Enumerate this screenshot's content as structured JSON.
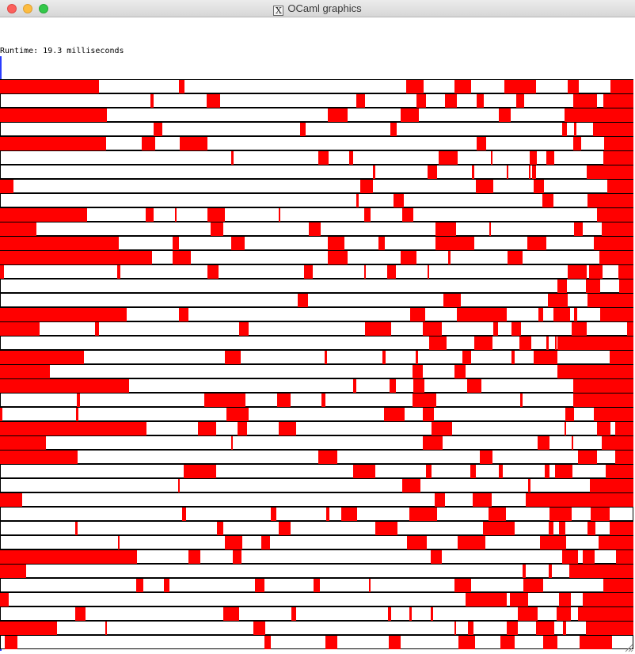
{
  "window": {
    "title": "OCaml graphics",
    "title_icon": "x11-icon",
    "controls": [
      "close",
      "minimize",
      "maximize"
    ]
  },
  "runtime_text": "Runtime: 19.3 milliseconds",
  "colors": {
    "bar_fill": "#ff0000",
    "background": "#ffffff",
    "row_border": "#000000"
  },
  "rows": [
    [
      [
        0,
        0.156
      ],
      [
        0.283,
        0.291
      ],
      [
        0.641,
        0.669
      ],
      [
        0.718,
        0.744
      ],
      [
        0.796,
        0.846
      ],
      [
        0.896,
        0.914
      ],
      [
        0.964,
        1
      ]
    ],
    [
      [
        0.238,
        0.243
      ],
      [
        0.326,
        0.348
      ],
      [
        0.563,
        0.576
      ],
      [
        0.658,
        0.672
      ],
      [
        0.702,
        0.721
      ],
      [
        0.753,
        0.764
      ],
      [
        0.815,
        0.827
      ],
      [
        0.905,
        0.943
      ],
      [
        0.952,
        1
      ]
    ],
    [
      [
        0,
        0.169
      ],
      [
        0.518,
        0.549
      ],
      [
        0.632,
        0.661
      ],
      [
        0.788,
        0.806
      ],
      [
        0.891,
        1
      ]
    ],
    [
      [
        0.242,
        0.256
      ],
      [
        0.474,
        0.483
      ],
      [
        0.616,
        0.626
      ],
      [
        0.887,
        0.895
      ],
      [
        0.906,
        0.91
      ],
      [
        0.936,
        1
      ]
    ],
    [
      [
        0,
        0.168
      ],
      [
        0.224,
        0.245
      ],
      [
        0.284,
        0.327
      ],
      [
        0.753,
        0.768
      ],
      [
        0.905,
        0.917
      ],
      [
        0.954,
        1
      ]
    ],
    [
      [
        0.365,
        0.369
      ],
      [
        0.502,
        0.519
      ],
      [
        0.551,
        0.557
      ],
      [
        0.692,
        0.722
      ],
      [
        0.775,
        0.778
      ],
      [
        0.836,
        0.848
      ],
      [
        0.862,
        0.875
      ],
      [
        0.953,
        1
      ]
    ],
    [
      [
        0.589,
        0.592
      ],
      [
        0.675,
        0.69
      ],
      [
        0.745,
        0.749
      ],
      [
        0.8,
        0.803
      ],
      [
        0.835,
        0.838
      ],
      [
        0.84,
        0.846
      ],
      [
        0.926,
        1
      ]
    ],
    [
      [
        0,
        0.021
      ],
      [
        0.569,
        0.589
      ],
      [
        0.751,
        0.779
      ],
      [
        0.843,
        0.859
      ],
      [
        0.959,
        1
      ]
    ],
    [
      [
        0.563,
        0.566
      ],
      [
        0.621,
        0.637
      ],
      [
        0.856,
        0.874
      ],
      [
        0.927,
        1
      ]
    ],
    [
      [
        0,
        0.137
      ],
      [
        0.23,
        0.242
      ],
      [
        0.276,
        0.278
      ],
      [
        0.328,
        0.355
      ],
      [
        0.44,
        0.443
      ],
      [
        0.575,
        0.585
      ],
      [
        0.635,
        0.653
      ],
      [
        0.943,
        1
      ]
    ],
    [
      [
        0,
        0.057
      ],
      [
        0.332,
        0.353
      ],
      [
        0.487,
        0.506
      ],
      [
        0.687,
        0.72
      ],
      [
        0.773,
        0.775
      ],
      [
        0.906,
        0.92
      ],
      [
        0.95,
        1
      ]
    ],
    [
      [
        0,
        0.188
      ],
      [
        0.273,
        0.283
      ],
      [
        0.365,
        0.386
      ],
      [
        0.517,
        0.544
      ],
      [
        0.597,
        0.607
      ],
      [
        0.688,
        0.749
      ],
      [
        0.832,
        0.863
      ],
      [
        0.937,
        1
      ]
    ],
    [
      [
        0,
        0.24
      ],
      [
        0.272,
        0.301
      ],
      [
        0.518,
        0.549
      ],
      [
        0.632,
        0.658
      ],
      [
        0.708,
        0.711
      ],
      [
        0.801,
        0.825
      ],
      [
        0.946,
        1
      ]
    ],
    [
      [
        0,
        0.006
      ],
      [
        0.185,
        0.19
      ],
      [
        0.327,
        0.345
      ],
      [
        0.48,
        0.494
      ],
      [
        0.575,
        0.578
      ],
      [
        0.611,
        0.625
      ],
      [
        0.675,
        0.677
      ],
      [
        0.896,
        0.926
      ],
      [
        0.93,
        0.951
      ],
      [
        0.976,
        1
      ]
    ],
    [
      [
        0.88,
        0.895
      ],
      [
        0.925,
        0.947
      ],
      [
        0.977,
        1
      ]
    ],
    [
      [
        0.47,
        0.486
      ],
      [
        0.7,
        0.728
      ],
      [
        0.865,
        0.896
      ],
      [
        0.928,
        1
      ]
    ],
    [
      [
        0,
        0.2
      ],
      [
        0.283,
        0.297
      ],
      [
        0.647,
        0.671
      ],
      [
        0.721,
        0.8
      ],
      [
        0.85,
        0.857
      ],
      [
        0.874,
        0.9
      ],
      [
        0.906,
        0.911
      ],
      [
        0.948,
        1
      ]
    ],
    [
      [
        0,
        0.062
      ],
      [
        0.15,
        0.156
      ],
      [
        0.378,
        0.393
      ],
      [
        0.576,
        0.618
      ],
      [
        0.667,
        0.697
      ],
      [
        0.779,
        0.786
      ],
      [
        0.807,
        0.823
      ],
      [
        0.903,
        0.926
      ],
      [
        0.99,
        1
      ]
    ],
    [
      [
        0.678,
        0.705
      ],
      [
        0.749,
        0.778
      ],
      [
        0.82,
        0.839
      ],
      [
        0.862,
        0.866
      ],
      [
        0.876,
        0.879
      ],
      [
        0.88,
        1
      ]
    ],
    [
      [
        0,
        0.132
      ],
      [
        0.355,
        0.38
      ],
      [
        0.512,
        0.516
      ],
      [
        0.604,
        0.609
      ],
      [
        0.656,
        0.66
      ],
      [
        0.73,
        0.744
      ],
      [
        0.808,
        0.812
      ],
      [
        0.842,
        0.88
      ],
      [
        0.962,
        1
      ]
    ],
    [
      [
        0,
        0.079
      ],
      [
        0.651,
        0.668
      ],
      [
        0.718,
        0.735
      ],
      [
        0.88,
        1
      ]
    ],
    [
      [
        0,
        0.204
      ],
      [
        0.557,
        0.563
      ],
      [
        0.615,
        0.625
      ],
      [
        0.652,
        0.67
      ],
      [
        0.737,
        0.76
      ],
      [
        0.905,
        1
      ]
    ],
    [
      [
        0.121,
        0.126
      ],
      [
        0.322,
        0.388
      ],
      [
        0.438,
        0.459
      ],
      [
        0.508,
        0.514
      ],
      [
        0.651,
        0.689
      ],
      [
        0.821,
        0.825
      ],
      [
        0.905,
        1
      ]
    ],
    [
      [
        0,
        0.004
      ],
      [
        0.12,
        0.124
      ],
      [
        0.358,
        0.392
      ],
      [
        0.606,
        0.639
      ],
      [
        0.668,
        0.685
      ],
      [
        0.892,
        0.906
      ],
      [
        0.937,
        1
      ]
    ],
    [
      [
        0,
        0.231
      ],
      [
        0.312,
        0.341
      ],
      [
        0.375,
        0.39
      ],
      [
        0.44,
        0.467
      ],
      [
        0.681,
        0.714
      ],
      [
        0.891,
        0.894
      ],
      [
        0.943,
        0.964
      ],
      [
        0.971,
        1
      ]
    ],
    [
      [
        0,
        0.073
      ],
      [
        0.365,
        0.368
      ],
      [
        0.667,
        0.699
      ],
      [
        0.849,
        0.868
      ],
      [
        0.902,
        0.904
      ],
      [
        0.95,
        1
      ]
    ],
    [
      [
        0,
        0.122
      ],
      [
        0.503,
        0.533
      ],
      [
        0.758,
        0.778
      ],
      [
        0.912,
        0.942
      ],
      [
        0.971,
        1
      ]
    ],
    [
      [
        0.29,
        0.341
      ],
      [
        0.558,
        0.592
      ],
      [
        0.673,
        0.681
      ],
      [
        0.743,
        0.751
      ],
      [
        0.787,
        0.794
      ],
      [
        0.86,
        0.868
      ],
      [
        0.876,
        0.904
      ],
      [
        0.956,
        1
      ]
    ],
    [
      [
        0.281,
        0.283
      ],
      [
        0.635,
        0.664
      ],
      [
        0.834,
        0.838
      ],
      [
        0.931,
        1
      ]
    ],
    [
      [
        0,
        0.035
      ],
      [
        0.686,
        0.703
      ],
      [
        0.746,
        0.776
      ],
      [
        0.875,
        0.881
      ],
      [
        0.83,
        1
      ]
    ],
    [
      [
        0.288,
        0.294
      ],
      [
        0.428,
        0.436
      ],
      [
        0.515,
        0.52
      ],
      [
        0.539,
        0.564
      ],
      [
        0.646,
        0.69
      ],
      [
        0.771,
        0.799
      ],
      [
        0.867,
        0.902
      ],
      [
        0.933,
        0.963
      ]
    ],
    [
      [
        0.119,
        0.122
      ],
      [
        0.343,
        0.353
      ],
      [
        0.44,
        0.459
      ],
      [
        0.593,
        0.628
      ],
      [
        0.763,
        0.813
      ],
      [
        0.866,
        0.874
      ],
      [
        0.883,
        0.892
      ],
      [
        0.927,
        0.94
      ],
      [
        0.963,
        1
      ]
    ],
    [
      [
        0.186,
        0.189
      ],
      [
        0.355,
        0.382
      ],
      [
        0.413,
        0.426
      ],
      [
        0.642,
        0.674
      ],
      [
        0.723,
        0.766
      ],
      [
        0.852,
        0.894
      ],
      [
        0.945,
        1
      ]
    ],
    [
      [
        0,
        0.216
      ],
      [
        0.298,
        0.316
      ],
      [
        0.367,
        0.381
      ],
      [
        0.68,
        0.697
      ],
      [
        0.887,
        0.913
      ],
      [
        0.92,
        0.939
      ],
      [
        0.973,
        1
      ]
    ],
    [
      [
        0,
        0.041
      ],
      [
        0.825,
        0.83
      ],
      [
        0.866,
        0.871
      ],
      [
        0.899,
        1
      ]
    ],
    [
      [
        0.215,
        0.226
      ],
      [
        0.259,
        0.267
      ],
      [
        0.402,
        0.417
      ],
      [
        0.495,
        0.505
      ],
      [
        0.583,
        0.585
      ],
      [
        0.717,
        0.744
      ],
      [
        0.826,
        0.858
      ],
      [
        0.953,
        1
      ]
    ],
    [
      [
        0,
        0.014
      ],
      [
        0.735,
        0.8
      ],
      [
        0.805,
        0.834
      ],
      [
        0.882,
        0.901
      ],
      [
        0.92,
        1
      ]
    ],
    [
      [
        0.119,
        0.135
      ],
      [
        0.352,
        0.377
      ],
      [
        0.46,
        0.468
      ],
      [
        0.613,
        0.617
      ],
      [
        0.646,
        0.65
      ],
      [
        0.68,
        0.684
      ],
      [
        0.817,
        0.849
      ],
      [
        0.879,
        0.901
      ],
      [
        0.913,
        1
      ]
    ],
    [
      [
        0,
        0.09
      ],
      [
        0.166,
        0.169
      ],
      [
        0.4,
        0.419
      ],
      [
        0.718,
        0.72
      ],
      [
        0.739,
        0.748
      ],
      [
        0.8,
        0.817
      ],
      [
        0.846,
        0.875
      ],
      [
        0.889,
        0.894
      ],
      [
        0.925,
        1
      ]
    ],
    [
      [
        0.007,
        0.027
      ],
      [
        0.418,
        0.428
      ],
      [
        0.514,
        0.533
      ],
      [
        0.614,
        0.633
      ],
      [
        0.724,
        0.75
      ],
      [
        0.79,
        0.813
      ],
      [
        0.857,
        0.88
      ],
      [
        0.915,
        0.966
      ]
    ]
  ]
}
